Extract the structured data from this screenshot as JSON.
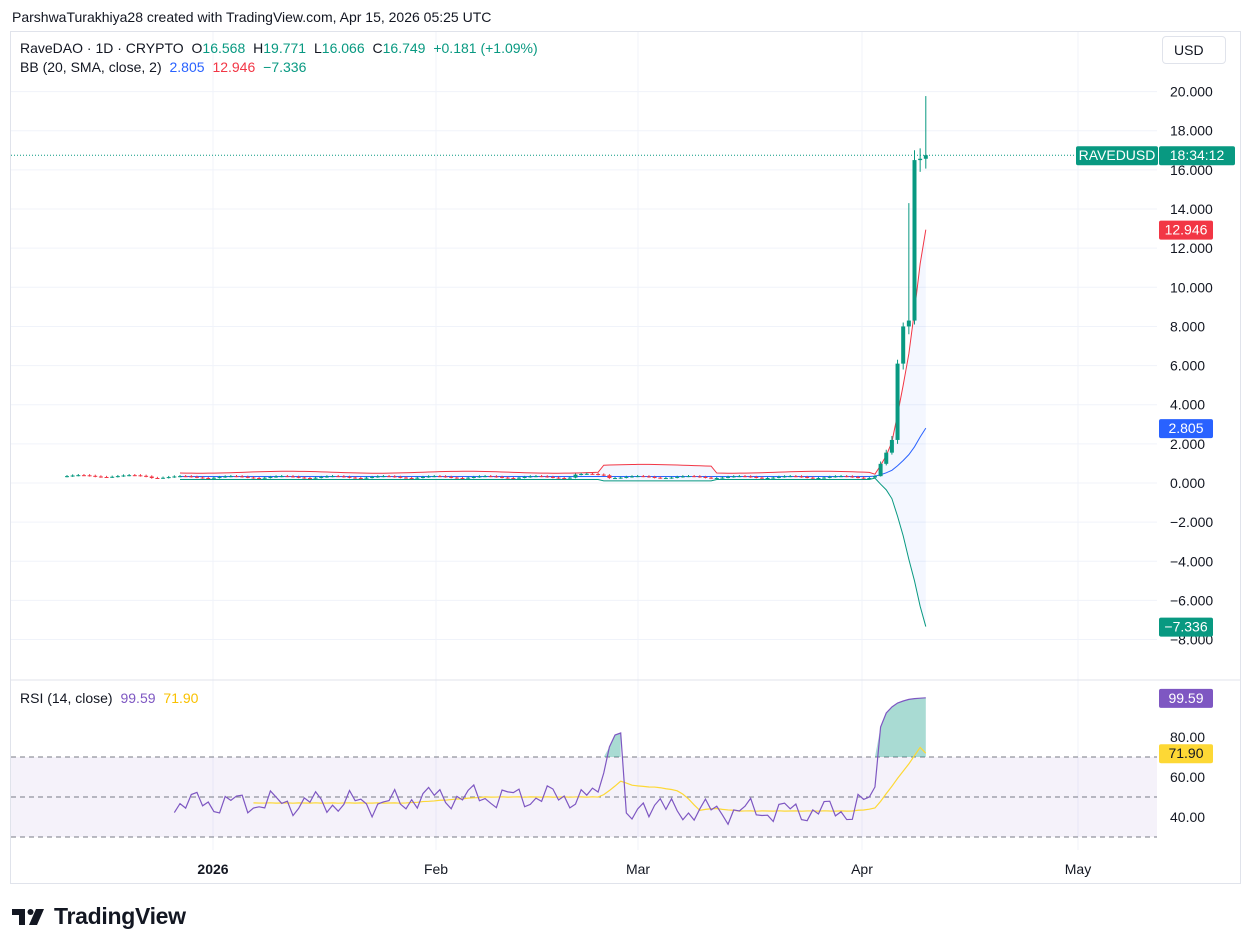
{
  "header": {
    "credit": "ParshwaTurakhiya28 created with TradingView.com, Apr 15, 2026 05:25 UTC"
  },
  "legend": {
    "symbol": "RaveDAO · 1D · CRYPTO",
    "o_label": "O",
    "o_value": "16.568",
    "h_label": "H",
    "h_value": "19.771",
    "l_label": "L",
    "l_value": "16.066",
    "c_label": "C",
    "c_value": "16.749",
    "change": "+0.181 (+1.09%)",
    "bb_label": "BB (20, SMA, close, 2)",
    "bb_basis": "2.805",
    "bb_upper": "12.946",
    "bb_lower": "−7.336",
    "rsi_label": "RSI (14, close)",
    "rsi_value": "99.59",
    "rsi_ma": "71.90"
  },
  "currency_button": "USD",
  "price_badge": {
    "symbol": "RAVEDUSD",
    "countdown": "18:34:12"
  },
  "colors": {
    "up": "#089981",
    "down": "#f23645",
    "bb_basis": "#2962ff",
    "bb_upper": "#f23645",
    "bb_lower": "#089981",
    "rsi": "#7e57c2",
    "rsi_ma": "#fdd835",
    "grid": "#f0f3fa",
    "text": "#131722"
  },
  "brand": {
    "name": "TradingView"
  },
  "chart_data": {
    "type": "candlestick",
    "price_axis": {
      "ticks": [
        "20.000",
        "18.000",
        "16.000",
        "14.000",
        "12.000",
        "10.000",
        "8.000",
        "6.000",
        "4.000",
        "2.000",
        "0.000",
        "−2.000",
        "−4.000",
        "−6.000",
        "−8.000"
      ],
      "ylim": [
        -8,
        20
      ]
    },
    "time_axis": {
      "labels": [
        "2026",
        "Feb",
        "Mar",
        "Apr",
        "May"
      ]
    },
    "last_candles": [
      {
        "date": "Apr 6",
        "o": 0.28,
        "h": 0.4,
        "l": 0.25,
        "c": 0.35
      },
      {
        "date": "Apr 7",
        "o": 0.35,
        "h": 1.1,
        "l": 0.33,
        "c": 0.98
      },
      {
        "date": "Apr 8",
        "o": 0.98,
        "h": 1.7,
        "l": 0.9,
        "c": 1.55
      },
      {
        "date": "Apr 9",
        "o": 1.55,
        "h": 2.4,
        "l": 1.45,
        "c": 2.2
      },
      {
        "date": "Apr 10",
        "o": 2.2,
        "h": 6.3,
        "l": 2.0,
        "c": 6.1
      },
      {
        "date": "Apr 11",
        "o": 6.1,
        "h": 8.2,
        "l": 5.8,
        "c": 8.0
      },
      {
        "date": "Apr 12",
        "o": 8.0,
        "h": 14.3,
        "l": 7.6,
        "c": 8.3
      },
      {
        "date": "Apr 13",
        "o": 8.3,
        "h": 17.0,
        "l": 8.1,
        "c": 16.5
      },
      {
        "date": "Apr 14",
        "o": 16.5,
        "h": 17.1,
        "l": 15.9,
        "c": 16.568
      },
      {
        "date": "Apr 15",
        "o": 16.568,
        "h": 19.771,
        "l": 16.066,
        "c": 16.749
      }
    ],
    "bollinger": {
      "basis": 2.805,
      "upper": 12.946,
      "lower": -7.336
    },
    "rsi": {
      "ticks": [
        "80.00",
        "60.00",
        "40.00"
      ],
      "levels": [
        70,
        50,
        30
      ],
      "value": 99.59,
      "ma": 71.9,
      "recent_values": [
        45,
        44,
        44,
        46,
        52,
        85,
        92,
        95,
        98,
        99,
        99.59
      ]
    }
  }
}
